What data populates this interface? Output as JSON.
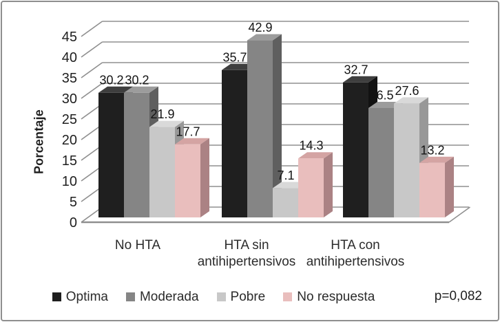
{
  "chart_data": {
    "type": "bar",
    "style": "3d-clustered",
    "title": "",
    "xlabel": "",
    "ylabel": "Porcentaje",
    "ylim": [
      0,
      45
    ],
    "yticks": [
      0,
      5,
      10,
      15,
      20,
      25,
      30,
      35,
      40,
      45
    ],
    "grid": true,
    "legend_position": "bottom",
    "categories": [
      "No HTA",
      "HTA sin antihipertensivos",
      "HTA con antihipertensivos"
    ],
    "category_lines": [
      [
        "No HTA"
      ],
      [
        "HTA sin",
        "antihipertensivos"
      ],
      [
        "HTA con",
        "antihipertensivos"
      ]
    ],
    "series": [
      {
        "name": "Optima",
        "values": [
          30.2,
          35.7,
          32.7
        ],
        "color": "#1f1f1f",
        "color_top": "#3e3e3e",
        "color_side": "#121212"
      },
      {
        "name": "Moderada",
        "values": [
          30.2,
          42.9,
          26.5
        ],
        "color": "#858585",
        "color_top": "#9c9c9c",
        "color_side": "#5f5f5f"
      },
      {
        "name": "Pobre",
        "values": [
          21.9,
          7.1,
          27.6
        ],
        "color": "#c8c8c8",
        "color_top": "#d9d9d9",
        "color_side": "#989898"
      },
      {
        "name": "No respuesta",
        "values": [
          17.7,
          14.3,
          13.2
        ],
        "color": "#e9bebd",
        "color_top": "#d4a4a3",
        "color_side": "#ab8284"
      }
    ],
    "value_labels": [
      [
        "30.2",
        "30.2",
        "21.9",
        "17.7"
      ],
      [
        "35.7",
        "42.9",
        "7.1",
        "14.3"
      ],
      [
        "32.7",
        "26.5",
        "27.6",
        "13.2"
      ]
    ],
    "annotation": "p=0,082"
  },
  "colors": {
    "gridline": "#8f8f8f",
    "axis_text": "#1f1f1f",
    "value_text": "#141414",
    "category_text": "#2b2b2b",
    "background": "#ffffff",
    "border": "#8e8e8e"
  }
}
